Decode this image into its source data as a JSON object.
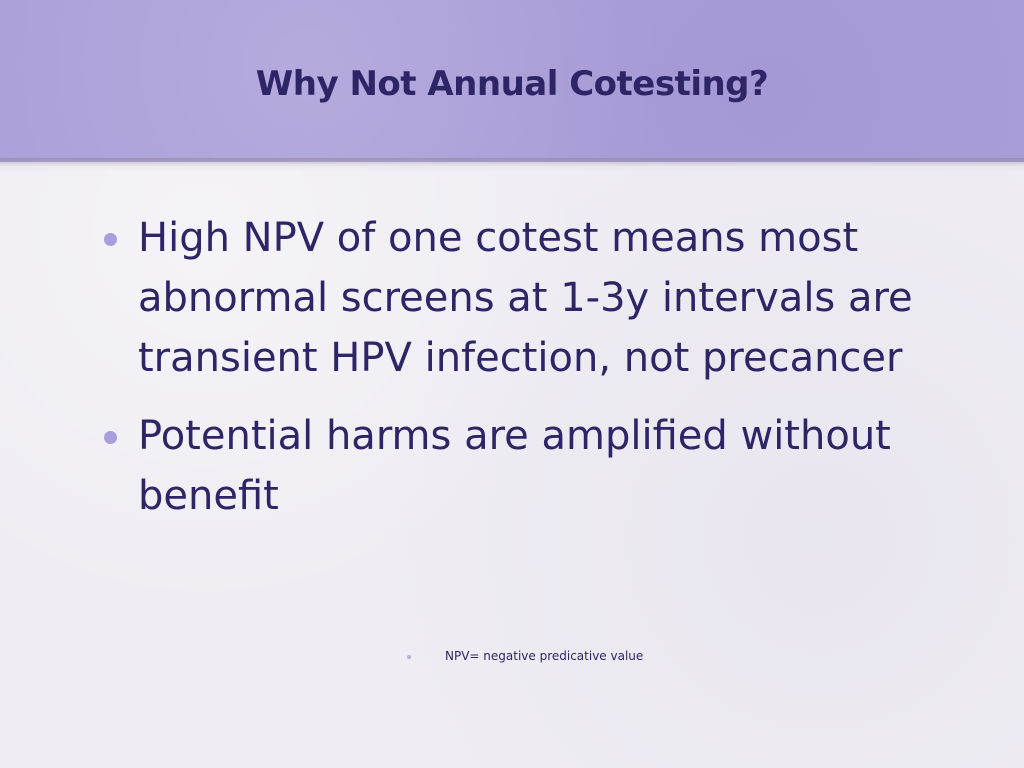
{
  "slide": {
    "title": "Why Not Annual Cotesting?",
    "bullets": [
      "High NPV of one cotest means most abnormal screens at 1-3y intervals are transient HPV infection, not precancer",
      "Potential harms are amplified without benefit"
    ],
    "footnote": "NPV= negative predicative value"
  },
  "colors": {
    "header_band": "#ab9fd9",
    "title_text": "#2e2566",
    "body_text": "#2e2566",
    "bullet": "#a99edb",
    "background": "#efedf3"
  }
}
